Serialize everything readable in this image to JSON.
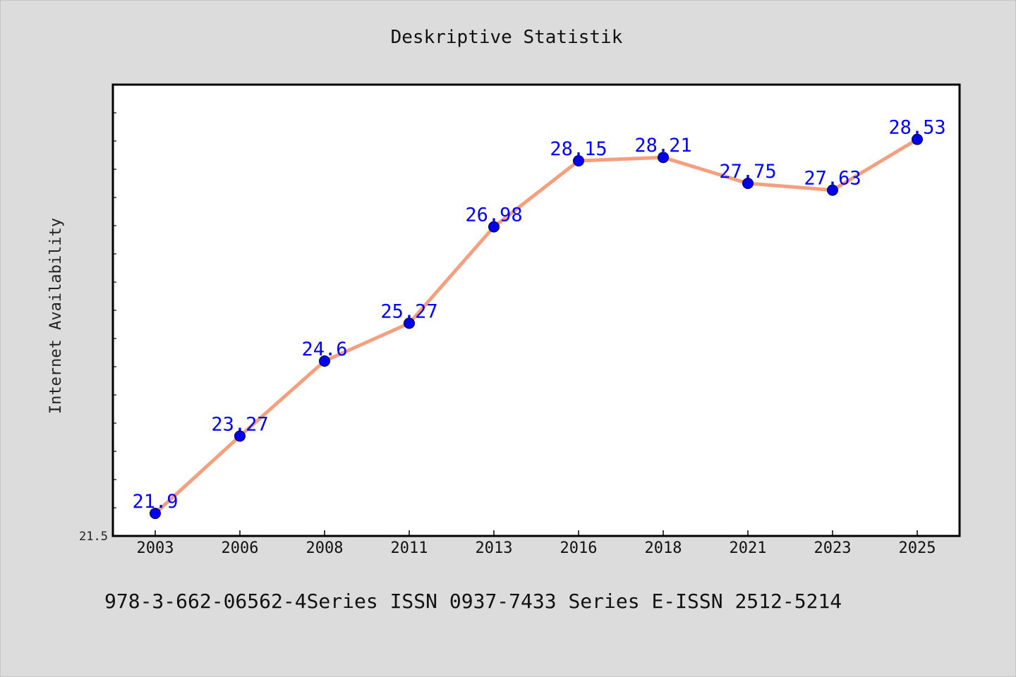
{
  "chart_data": {
    "type": "line",
    "title": "Deskriptive Statistik",
    "ylabel": "Internet Availability",
    "xlabel": "",
    "categories": [
      "2003",
      "2006",
      "2008",
      "2011",
      "2013",
      "2016",
      "2018",
      "2021",
      "2023",
      "2025"
    ],
    "values": [
      21.9,
      23.27,
      24.6,
      25.27,
      26.98,
      28.15,
      28.21,
      27.75,
      27.63,
      28.53
    ],
    "data_labels": [
      "21.9",
      "23.27",
      "24.6",
      "25.27",
      "26.98",
      "28.15",
      "28.21",
      "27.75",
      "27.63",
      "28.53"
    ],
    "y_tick_label": "21.5",
    "ylim": [
      21.5,
      29.5
    ],
    "grid": false,
    "colors": {
      "line": "#f4a07e",
      "marker": "#0000ee",
      "label": "#0000ff",
      "background": "#dcdcdc",
      "plot_background": "#ffffff"
    }
  },
  "footer": {
    "text": "978-3-662-06562-4Series ISSN 0937-7433 Series E-ISSN 2512-5214"
  }
}
